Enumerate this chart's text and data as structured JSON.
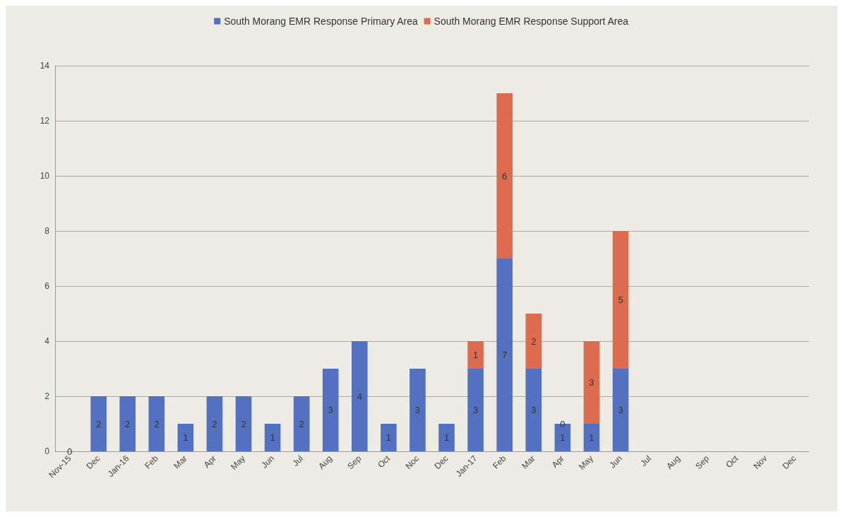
{
  "chart_data": {
    "type": "bar",
    "stacked": true,
    "categories": [
      "Nov-15",
      "Dec",
      "Jan-16",
      "Feb",
      "Mar",
      "Apr",
      "May",
      "Jun",
      "Jul",
      "Aug",
      "Sep",
      "Oct",
      "Noc",
      "Dec",
      "Jan-17",
      "Feb",
      "Mar",
      "Apr",
      "May",
      "Jun",
      "Jul",
      "Aug",
      "Sep",
      "Oct",
      "Nov",
      "Dec"
    ],
    "series": [
      {
        "name": "South Morang EMR Response Primary Area",
        "color": "#5470c0",
        "values": [
          0,
          2,
          2,
          2,
          1,
          2,
          2,
          1,
          2,
          3,
          4,
          1,
          3,
          1,
          3,
          7,
          3,
          1,
          1,
          3,
          null,
          null,
          null,
          null,
          null,
          null
        ]
      },
      {
        "name": "South Morang EMR Response Support Area",
        "color": "#dd6b50",
        "values": [
          null,
          null,
          null,
          null,
          null,
          null,
          null,
          null,
          null,
          null,
          null,
          null,
          null,
          null,
          1,
          6,
          2,
          0,
          3,
          5,
          null,
          null,
          null,
          null,
          null,
          null
        ]
      }
    ],
    "ylim": [
      0,
      14
    ],
    "yticks": [
      0,
      2,
      4,
      6,
      8,
      10,
      12,
      14
    ],
    "grid": "y",
    "legend": "top",
    "data_labels": true
  }
}
